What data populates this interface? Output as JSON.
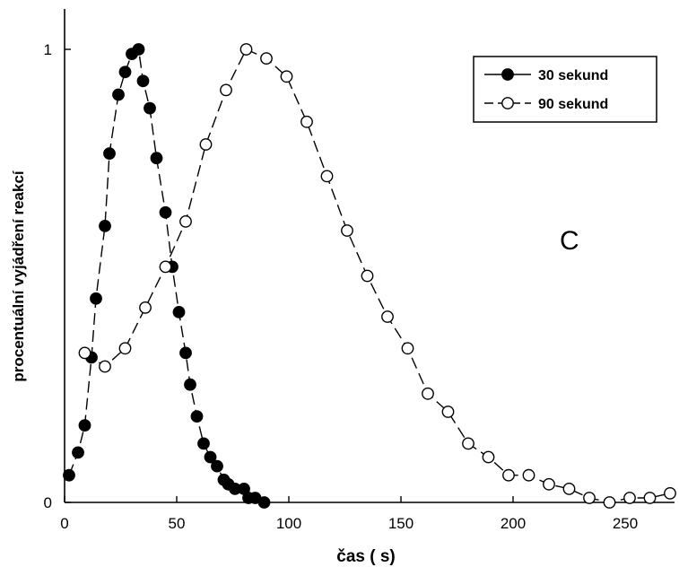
{
  "chart_data": {
    "type": "line",
    "title": "",
    "xlabel": "čas ( s)",
    "ylabel": "procentuální vyjádření reakcí",
    "panel_label": "C",
    "xlim": [
      0,
      272
    ],
    "ylim": [
      0,
      1.04
    ],
    "x_ticks": [
      0,
      50,
      100,
      150,
      200,
      250
    ],
    "y_ticks": [
      0,
      1
    ],
    "grid": false,
    "legend_position": "top-right",
    "series": [
      {
        "name": "30 sekund",
        "marker": "filled-circle",
        "line": "dashed",
        "x": [
          2,
          6,
          9,
          12,
          14,
          18,
          20,
          24,
          27,
          30,
          33,
          35,
          38,
          41,
          45,
          48,
          51,
          54,
          56,
          59,
          62,
          65,
          68,
          71,
          73,
          76,
          80,
          82,
          85,
          89
        ],
        "y": [
          0.06,
          0.11,
          0.17,
          0.32,
          0.45,
          0.61,
          0.77,
          0.9,
          0.95,
          0.99,
          1.0,
          0.93,
          0.87,
          0.76,
          0.64,
          0.52,
          0.42,
          0.33,
          0.26,
          0.19,
          0.13,
          0.1,
          0.08,
          0.05,
          0.04,
          0.03,
          0.03,
          0.01,
          0.01,
          0.0
        ]
      },
      {
        "name": "90 sekund",
        "marker": "open-circle",
        "line": "dashed",
        "x": [
          9,
          18,
          27,
          36,
          45,
          54,
          63,
          72,
          81,
          90,
          99,
          108,
          117,
          126,
          135,
          144,
          153,
          162,
          171,
          180,
          189,
          198,
          207,
          216,
          225,
          234,
          243,
          252,
          261,
          270
        ],
        "y": [
          0.33,
          0.3,
          0.34,
          0.43,
          0.52,
          0.62,
          0.79,
          0.91,
          1.0,
          0.98,
          0.94,
          0.84,
          0.72,
          0.6,
          0.5,
          0.41,
          0.34,
          0.24,
          0.2,
          0.13,
          0.1,
          0.06,
          0.06,
          0.04,
          0.03,
          0.01,
          0.0,
          0.01,
          0.01,
          0.02
        ]
      }
    ]
  }
}
